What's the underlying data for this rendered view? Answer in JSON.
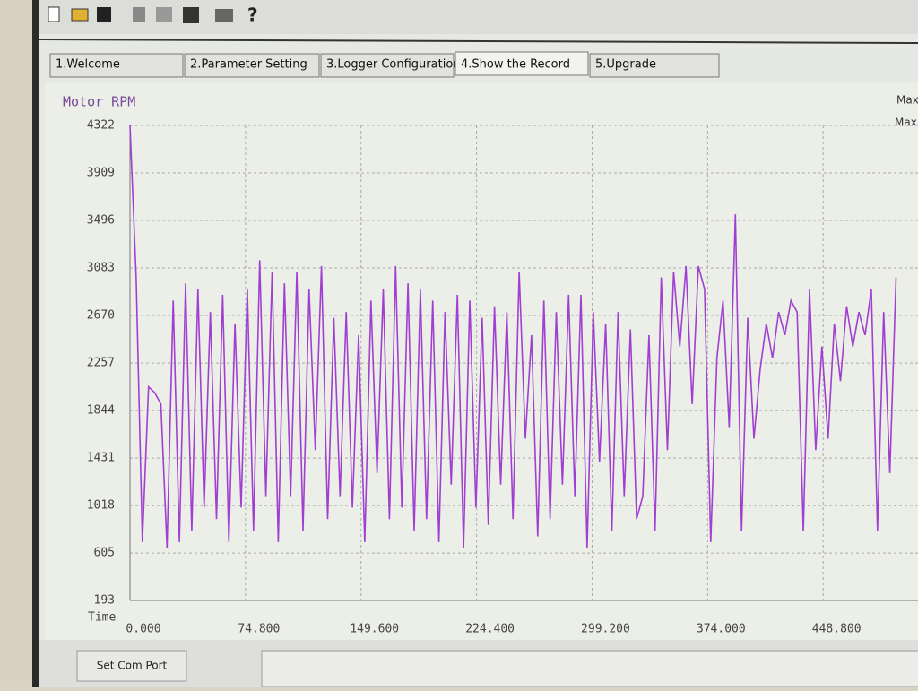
{
  "tabs": [
    "1.Welcome",
    "2.Parameter Setting",
    "3.Logger Configuration",
    "4.Show the Record",
    "5.Upgrade"
  ],
  "button": "Set Com Port",
  "chart_data": {
    "type": "line",
    "y_label": "Motor RPM",
    "x_label": "Time",
    "side_labels": [
      "Max",
      "Max."
    ],
    "color": "#a040d0",
    "grid": true,
    "ylim": [
      193,
      4322
    ],
    "yticks": [
      193,
      605,
      1018,
      1431,
      1844,
      2257,
      2670,
      3083,
      3496,
      3909,
      4322
    ],
    "xlim": [
      0,
      505
    ],
    "xticks": [
      {
        "value": 0,
        "label": "0.000"
      },
      {
        "value": 74.8,
        "label": "74.800"
      },
      {
        "value": 149.6,
        "label": "149.600"
      },
      {
        "value": 224.4,
        "label": "224.400"
      },
      {
        "value": 299.2,
        "label": "299.200"
      },
      {
        "value": 374,
        "label": "374.000"
      },
      {
        "value": 448.8,
        "label": "448.800"
      }
    ],
    "x": [
      0,
      4,
      8,
      12,
      16,
      20,
      24,
      28,
      32,
      36,
      40,
      44,
      48,
      52,
      56,
      60,
      64,
      68,
      72,
      76,
      80,
      84,
      88,
      92,
      96,
      100,
      104,
      108,
      112,
      116,
      120,
      124,
      128,
      132,
      136,
      140,
      144,
      148,
      152,
      156,
      160,
      164,
      168,
      172,
      176,
      180,
      184,
      188,
      192,
      196,
      200,
      204,
      208,
      212,
      216,
      220,
      224,
      228,
      232,
      236,
      240,
      244,
      248,
      252,
      256,
      260,
      264,
      268,
      272,
      276,
      280,
      284,
      288,
      292,
      296,
      300,
      304,
      308,
      312,
      316,
      320,
      324,
      328,
      332,
      336,
      340,
      344,
      348,
      352,
      356,
      360,
      364,
      368,
      372,
      376,
      380,
      384,
      388,
      392,
      396,
      400,
      404,
      408,
      412,
      416,
      420,
      424,
      428,
      432,
      436,
      440,
      444,
      448,
      452,
      456,
      460,
      464,
      468,
      472,
      476,
      480,
      484,
      488,
      492,
      496
    ],
    "values": [
      4322,
      3000,
      700,
      2050,
      2000,
      1900,
      650,
      2800,
      700,
      2950,
      800,
      2900,
      1000,
      2700,
      900,
      2850,
      700,
      2600,
      1000,
      2900,
      800,
      3150,
      1100,
      3050,
      700,
      2950,
      1100,
      3050,
      800,
      2900,
      1500,
      3100,
      900,
      2650,
      1100,
      2700,
      1000,
      2500,
      700,
      2800,
      1300,
      2900,
      900,
      3100,
      1000,
      2950,
      800,
      2900,
      900,
      2800,
      700,
      2700,
      1200,
      2850,
      650,
      2800,
      1000,
      2650,
      850,
      2750,
      1200,
      2700,
      900,
      3050,
      1600,
      2500,
      750,
      2800,
      900,
      2700,
      1200,
      2850,
      1100,
      2850,
      650,
      2700,
      1400,
      2600,
      800,
      2700,
      1100,
      2550,
      900,
      1100,
      2500,
      800,
      3000,
      1500,
      3050,
      2400,
      3100,
      1900,
      3100,
      2900,
      700,
      2300,
      2800,
      1700,
      3550,
      800,
      2650,
      1600,
      2200,
      2600,
      2300,
      2700,
      2500,
      2800,
      2700,
      800,
      2900,
      1500,
      2400,
      1600,
      2600,
      2100,
      2750,
      2400,
      2700,
      2500,
      2900,
      800,
      2700,
      1300,
      3000
    ]
  }
}
